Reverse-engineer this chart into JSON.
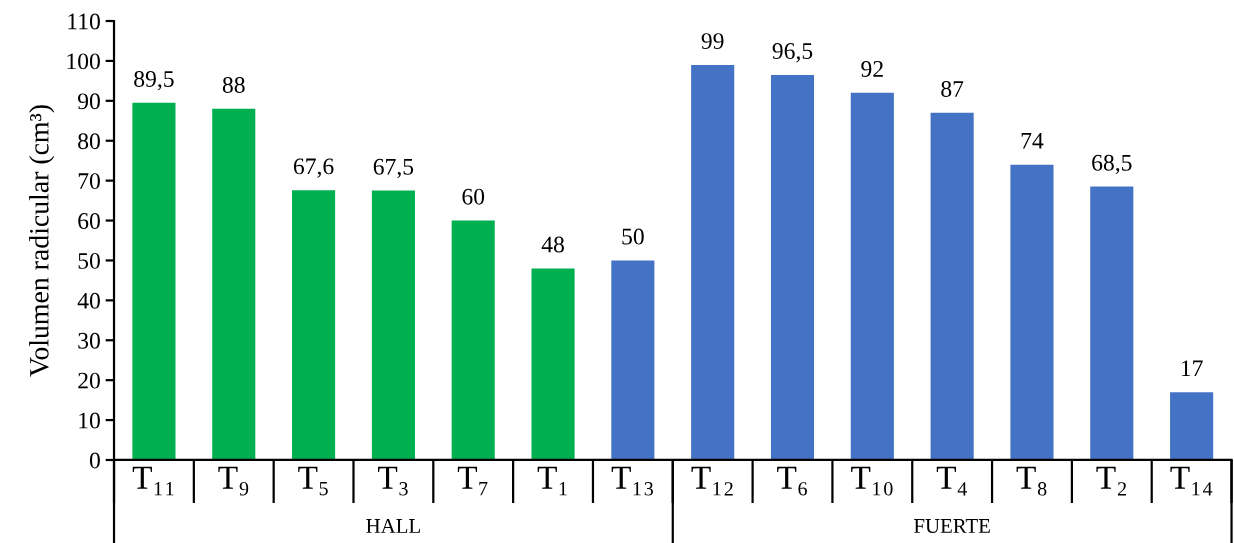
{
  "chart_data": {
    "type": "bar",
    "ylabel": "Volumen radicular (cm³)",
    "categories": [
      "T₁₁",
      "T₉",
      "T₅",
      "T₃",
      "T₇",
      "T₁",
      "T₁₃",
      "T₁₂",
      "T₆",
      "T₁₀",
      "T₄",
      "T₈",
      "T₂",
      "T₁₄"
    ],
    "values": [
      89.5,
      88,
      67.6,
      67.5,
      60,
      48,
      50,
      99,
      96.5,
      92,
      87,
      74,
      68.5,
      17
    ],
    "colors": [
      "#00b050",
      "#00b050",
      "#00b050",
      "#00b050",
      "#00b050",
      "#00b050",
      "#4472c4",
      "#4472c4",
      "#4472c4",
      "#4472c4",
      "#4472c4",
      "#4472c4",
      "#4472c4",
      "#4472c4"
    ],
    "value_labels": [
      "89,5",
      "88",
      "67,6",
      "67,5",
      "60",
      "48",
      "50",
      "99",
      "96,5",
      "92",
      "87",
      "74",
      "68,5",
      "17"
    ],
    "ylim": [
      0,
      110
    ],
    "yticks": [
      0,
      10,
      20,
      30,
      40,
      50,
      60,
      70,
      80,
      90,
      100,
      110
    ],
    "annotations": [
      "HALL",
      "FUERTE"
    ]
  }
}
